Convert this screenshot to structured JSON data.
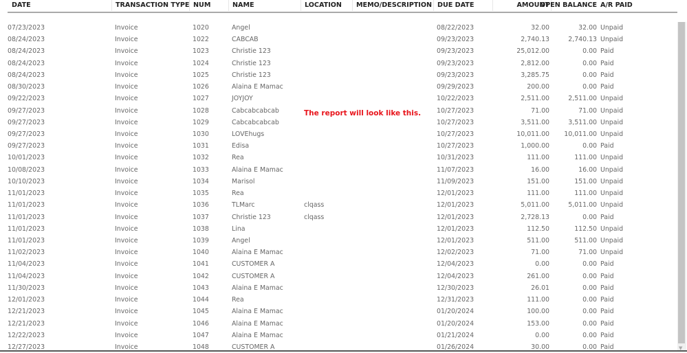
{
  "columns": {
    "date": "DATE",
    "type": "TRANSACTION TYPE",
    "num": "NUM",
    "name": "NAME",
    "location": "LOCATION",
    "memo": "MEMO/DESCRIPTION",
    "due_date": "DUE DATE",
    "amount": "AMOUNT",
    "open_balance": "OPEN BALANCE",
    "ar_paid": "A/R PAID"
  },
  "annotation": "The report will look like this.",
  "annotation_color": "#e8141b",
  "rows": [
    [
      "07/23/2023",
      "Invoice",
      "1020",
      "Angel",
      "",
      "",
      "08/22/2023",
      "32.00",
      "32.00",
      "Unpaid"
    ],
    [
      "08/24/2023",
      "Invoice",
      "1022",
      "CABCAB",
      "",
      "",
      "09/23/2023",
      "2,740.13",
      "2,740.13",
      "Unpaid"
    ],
    [
      "08/24/2023",
      "Invoice",
      "1023",
      "Christie 123",
      "",
      "",
      "09/23/2023",
      "25,012.00",
      "0.00",
      "Paid"
    ],
    [
      "08/24/2023",
      "Invoice",
      "1024",
      "Christie 123",
      "",
      "",
      "09/23/2023",
      "2,812.00",
      "0.00",
      "Paid"
    ],
    [
      "08/24/2023",
      "Invoice",
      "1025",
      "Christie 123",
      "",
      "",
      "09/23/2023",
      "3,285.75",
      "0.00",
      "Paid"
    ],
    [
      "08/30/2023",
      "Invoice",
      "1026",
      "Alaina E Mamac",
      "",
      "",
      "09/29/2023",
      "200.00",
      "0.00",
      "Paid"
    ],
    [
      "09/22/2023",
      "Invoice",
      "1027",
      "JOYJOY",
      "",
      "",
      "10/22/2023",
      "2,511.00",
      "2,511.00",
      "Unpaid"
    ],
    [
      "09/27/2023",
      "Invoice",
      "1028",
      "Cabcabcabcab",
      "",
      "",
      "10/27/2023",
      "71.00",
      "71.00",
      "Unpaid"
    ],
    [
      "09/27/2023",
      "Invoice",
      "1029",
      "Cabcabcabcab",
      "",
      "",
      "10/27/2023",
      "3,511.00",
      "3,511.00",
      "Unpaid"
    ],
    [
      "09/27/2023",
      "Invoice",
      "1030",
      "LOVEhugs",
      "",
      "",
      "10/27/2023",
      "10,011.00",
      "10,011.00",
      "Unpaid"
    ],
    [
      "09/27/2023",
      "Invoice",
      "1031",
      "Edisa",
      "",
      "",
      "10/27/2023",
      "1,000.00",
      "0.00",
      "Paid"
    ],
    [
      "10/01/2023",
      "Invoice",
      "1032",
      "Rea",
      "",
      "",
      "10/31/2023",
      "111.00",
      "111.00",
      "Unpaid"
    ],
    [
      "10/08/2023",
      "Invoice",
      "1033",
      "Alaina E Mamac",
      "",
      "",
      "11/07/2023",
      "16.00",
      "16.00",
      "Unpaid"
    ],
    [
      "10/10/2023",
      "Invoice",
      "1034",
      "Marisol",
      "",
      "",
      "11/09/2023",
      "151.00",
      "151.00",
      "Unpaid"
    ],
    [
      "11/01/2023",
      "Invoice",
      "1035",
      "Rea",
      "",
      "",
      "12/01/2023",
      "111.00",
      "111.00",
      "Unpaid"
    ],
    [
      "11/01/2023",
      "Invoice",
      "1036",
      "TLMarc",
      "clqass",
      "",
      "12/01/2023",
      "5,011.00",
      "5,011.00",
      "Unpaid"
    ],
    [
      "11/01/2023",
      "Invoice",
      "1037",
      "Christie 123",
      "clqass",
      "",
      "12/01/2023",
      "2,728.13",
      "0.00",
      "Paid"
    ],
    [
      "11/01/2023",
      "Invoice",
      "1038",
      "Lina",
      "",
      "",
      "12/01/2023",
      "112.50",
      "112.50",
      "Unpaid"
    ],
    [
      "11/01/2023",
      "Invoice",
      "1039",
      "Angel",
      "",
      "",
      "12/01/2023",
      "511.00",
      "511.00",
      "Unpaid"
    ],
    [
      "11/02/2023",
      "Invoice",
      "1040",
      "Alaina E Mamac",
      "",
      "",
      "12/02/2023",
      "71.00",
      "71.00",
      "Unpaid"
    ],
    [
      "11/04/2023",
      "Invoice",
      "1041",
      "CUSTOMER A",
      "",
      "",
      "12/04/2023",
      "0.00",
      "0.00",
      "Paid"
    ],
    [
      "11/04/2023",
      "Invoice",
      "1042",
      "CUSTOMER A",
      "",
      "",
      "12/04/2023",
      "261.00",
      "0.00",
      "Paid"
    ],
    [
      "11/30/2023",
      "Invoice",
      "1043",
      "Alaina E Mamac",
      "",
      "",
      "12/30/2023",
      "26.01",
      "0.00",
      "Paid"
    ],
    [
      "12/01/2023",
      "Invoice",
      "1044",
      "Rea",
      "",
      "",
      "12/31/2023",
      "111.00",
      "0.00",
      "Paid"
    ],
    [
      "12/21/2023",
      "Invoice",
      "1045",
      "Alaina E Mamac",
      "",
      "",
      "01/20/2024",
      "100.00",
      "0.00",
      "Paid"
    ],
    [
      "12/21/2023",
      "Invoice",
      "1046",
      "Alaina E Mamac",
      "",
      "",
      "01/20/2024",
      "153.00",
      "0.00",
      "Paid"
    ],
    [
      "12/22/2023",
      "Invoice",
      "1047",
      "Alaina E Mamac",
      "",
      "",
      "01/21/2024",
      "0.00",
      "0.00",
      "Paid"
    ],
    [
      "12/27/2023",
      "Invoice",
      "1048",
      "CUSTOMER A",
      "",
      "",
      "01/26/2024",
      "30.00",
      "0.00",
      "Paid"
    ]
  ]
}
